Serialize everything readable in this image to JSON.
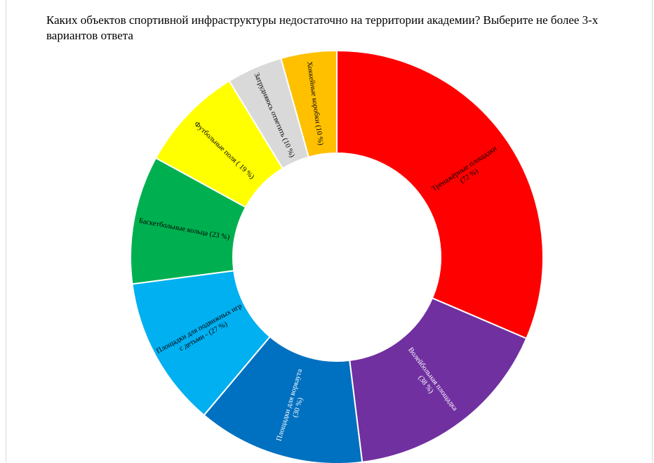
{
  "chart_data": {
    "type": "pie",
    "donut": true,
    "title": "Каких объектов спортивной инфраструктуры недостаточно на территории академии? Выберите не более 3-х вариантов ответа",
    "slices": [
      {
        "label": "Тренажёрные площадки",
        "value_label": "(72 %)",
        "value": 72,
        "color": "#ff0000",
        "text_color": "#000000"
      },
      {
        "label": "Волейбольная площадка",
        "value_label": "(38 %)",
        "value": 38,
        "color": "#7030a0",
        "text_color": "#ffffff"
      },
      {
        "label": "Площадки для воркаута",
        "value_label": "(30 %)",
        "value": 30,
        "color": "#0070c0",
        "text_color": "#ffffff"
      },
      {
        "label": "Площадки для подвижных игр с детьми",
        "value_label": "(27 %)",
        "value": 27,
        "color": "#00b0f0",
        "text_color": "#000000"
      },
      {
        "label": "Баскетбольные кольца",
        "value_label": "(23 %)",
        "value": 23,
        "color": "#00b050",
        "text_color": "#000000"
      },
      {
        "label": "Футбольные поля",
        "value_label": "( 19 %)",
        "value": 19,
        "color": "#ffff00",
        "text_color": "#000000"
      },
      {
        "label": "Затрудняюсь ответить",
        "value_label": "(10 %)",
        "value": 10,
        "color": "#d9d9d9",
        "text_color": "#000000"
      },
      {
        "label": "Хоккейные коробки",
        "value_label": "(10 %)",
        "value": 10,
        "color": "#ffc000",
        "text_color": "#000000"
      }
    ]
  }
}
